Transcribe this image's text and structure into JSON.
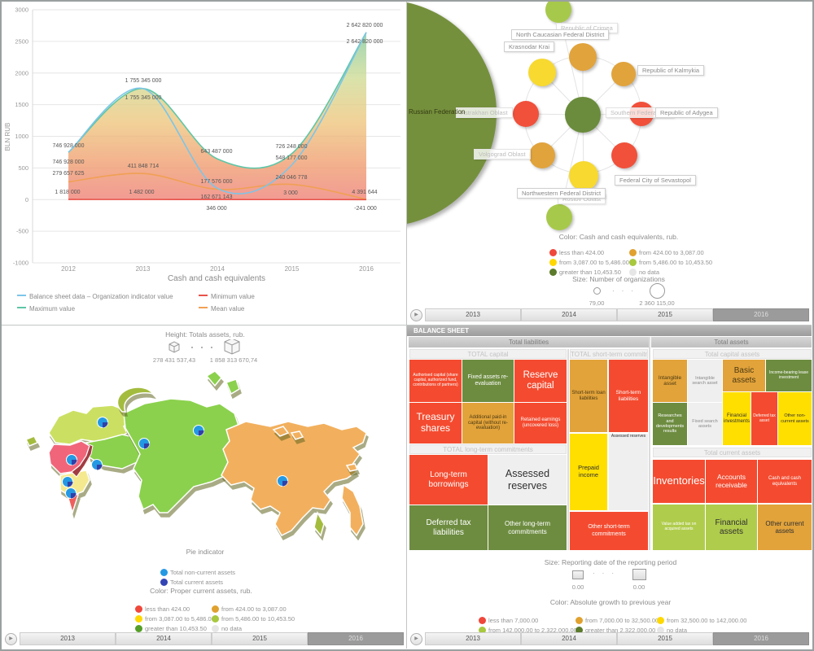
{
  "timeline": {
    "years": [
      "2013",
      "2014",
      "2015",
      "2016"
    ],
    "selected": "2016"
  },
  "chart": {
    "title": "Cash and cash equivalents",
    "ylabel": "BLN RUB",
    "ylim": [
      -1000,
      3000
    ],
    "yticks": [
      3000,
      2500,
      2000,
      1500,
      1000,
      500,
      0,
      -500,
      -1000
    ],
    "years": [
      "2012",
      "2013",
      "2014",
      "2015",
      "2016"
    ]
  },
  "chart_data": {
    "type": "line",
    "x": [
      2012,
      2013,
      2014,
      2015,
      2016
    ],
    "xlabel": "Cash and cash equivalents",
    "ylabel": "BLN RUB",
    "ylim": [
      -1000,
      3000
    ],
    "series": [
      {
        "name": "Balance sheet data – Organization indicator value",
        "color": "#7cc5e8",
        "values_bln": [
          746.928,
          1755.345,
          177.576,
          548.177,
          2642.82
        ],
        "labels": [
          "746 928 000",
          "1 755 345 000",
          "177 576 000",
          "548 177 000",
          "2 642 820 000"
        ]
      },
      {
        "name": "Maximum value",
        "color": "#5fc6a7",
        "values_bln": [
          746.928,
          1755.345,
          643.487,
          726.248,
          2642.82
        ],
        "labels": [
          "746 928 000",
          "1 755 345 000",
          "643 487 000",
          "726 248 000",
          "2 642 820 000"
        ]
      },
      {
        "name": "Mean value",
        "color": "#f0a054",
        "values_bln": [
          279.658,
          411.849,
          162.671,
          240.047,
          4.392
        ],
        "labels": [
          "279 657 625",
          "411 848 714",
          "162 671 143",
          "240 046 778",
          "4 391 644"
        ]
      },
      {
        "name": "Minimum value",
        "color": "#e8534a",
        "values_bln": [
          1.818,
          1.482,
          0.346,
          0.003,
          -0.241
        ],
        "labels": [
          "1 818 000",
          "1 482 000",
          "346 000",
          "3 000",
          "-241 000"
        ]
      }
    ],
    "legend_position": "bottom"
  },
  "network": {
    "root_label": "Russian Federation",
    "center_label": "Southern Federal District",
    "node_colors": {
      "red": "#f1503b",
      "orange": "#e1a33c",
      "yellow": "#f7d930",
      "lightgreen": "#a7c94b",
      "darkgreen": "#6a8c3c"
    },
    "nodes": [
      {
        "label": "Republic of Crimea",
        "color": "lightgreen"
      },
      {
        "label": "North Caucasian Federal District",
        "color": "orange"
      },
      {
        "label": "Krasnodar Krai",
        "color": "yellow"
      },
      {
        "label": "Republic of Kalmykia",
        "color": "orange"
      },
      {
        "label": "Astrakhan Oblast",
        "color": "red"
      },
      {
        "label": "Republic of Adygea",
        "color": "red"
      },
      {
        "label": "Volgograd Oblast",
        "color": "orange"
      },
      {
        "label": "Federal City of Sevastopol",
        "color": "red"
      },
      {
        "label": "Rostov Oblast",
        "color": "yellow"
      },
      {
        "label": "Northwestern Federal District",
        "color": "lightgreen"
      }
    ],
    "color_legend": {
      "title": "Color: Cash and cash equivalents, rub.",
      "colors": [
        "#f0473b",
        "#e0a12f",
        "#ffd800",
        "#a8c83e",
        "#5c7b2b",
        "#e6e6e6"
      ],
      "items": [
        "less than 424.00",
        "from 424.00 to 3,087.00",
        "from 3,087.00 to 5,486.00",
        "from 5,486.00 to 10,453.50",
        "greater than 10,453.50",
        "no data"
      ]
    },
    "size_legend": {
      "title": "Size: Number of organizations",
      "min": "79,00",
      "max": "2 360 115,00"
    }
  },
  "map": {
    "height_legend": {
      "title": "Height: Totals assets, rub.",
      "min": "278 431 537,43",
      "max": "1 858 313 670,74"
    },
    "pie_legend": {
      "title": "Pie indicator",
      "items": [
        {
          "color": "#2499e3",
          "label": "Total non-current assets"
        },
        {
          "color": "#3344b5",
          "label": "Total current assets"
        }
      ]
    },
    "color_legend": {
      "title": "Color: Proper current assets, rub.",
      "colors": [
        "#f0473b",
        "#e0a12f",
        "#ffd800",
        "#a8c83e",
        "#559e28",
        "#e6e6e6"
      ],
      "items": [
        "less than 424.00",
        "from 424.00 to 3,087.00",
        "from 3,087.00 to 5,486.00",
        "from 5,486.00 to 10,453.50",
        "greater than 10,453.50",
        "no data"
      ]
    },
    "region_colors": {
      "nw": "#cbe063",
      "pink": "#f0657a",
      "yellow": "#f5e98f",
      "green": "#8bd14d",
      "orange": "#f2b05e",
      "olive": "#a4bc3e",
      "crimea": "#ef605c"
    },
    "pie_colors": {
      "body": "#2499e3",
      "slice": "#3040a8"
    }
  },
  "treemap": {
    "title": "BALANCE SHEET",
    "groups": [
      "Total liabilities",
      "Total assets"
    ],
    "tile_colors": {
      "red": "#f44b30",
      "amber": "#e2a33b",
      "green": "#6d8c40",
      "yellow": "#ffdf00",
      "white": "#efefef",
      "yellowgreen": "#b0cc4c"
    },
    "sections": {
      "total_capital": {
        "title": "TOTAL capital",
        "tiles": [
          {
            "label": "Authorised capital (share capital, authorized fund, contributions of partners)",
            "color": "red"
          },
          {
            "label": "Fixed assets re-evaluation",
            "color": "green"
          },
          {
            "label": "Reserve capital",
            "color": "red"
          },
          {
            "label": "Treasury shares",
            "color": "red"
          },
          {
            "label": "Additional paid-in capital (without re-evaluation)",
            "color": "amber"
          },
          {
            "label": "Retained earnings (uncovered loss)",
            "color": "red"
          }
        ]
      },
      "short_term": {
        "title": "TOTAL short-term commitm...",
        "tiles": [
          {
            "label": "Short-term loan liabilities",
            "color": "amber"
          },
          {
            "label": "Short-term liabilities",
            "color": "red"
          },
          {
            "label": "Prepaid income",
            "color": "yellow"
          },
          {
            "label": "Assessed reserves",
            "color": "white"
          },
          {
            "label": "Other short-term commitments",
            "color": "red"
          }
        ]
      },
      "long_term": {
        "title": "TOTAL long-term commitments",
        "tiles": [
          {
            "label": "Long-term borrowings",
            "color": "red"
          },
          {
            "label": "Assessed reserves",
            "color": "white"
          },
          {
            "label": "Deferred tax liabilities",
            "color": "green"
          },
          {
            "label": "Other long-term commitments",
            "color": "green"
          }
        ]
      },
      "capital_assets": {
        "title": "Total capital assets",
        "tiles": [
          {
            "label": "Intangible asset",
            "color": "amber"
          },
          {
            "label": "Intangible search asset",
            "color": "white"
          },
          {
            "label": "Basic assets",
            "color": "amber"
          },
          {
            "label": "Income-bearing lease investment",
            "color": "green"
          },
          {
            "label": "Researches and developments results",
            "color": "green"
          },
          {
            "label": "Fixed search assets",
            "color": "white"
          },
          {
            "label": "Financial investments",
            "color": "yellow"
          },
          {
            "label": "Deferred tax asset",
            "color": "red"
          },
          {
            "label": "Other non-current assets",
            "color": "yellow"
          }
        ]
      },
      "current_assets": {
        "title": "Total current assets",
        "tiles": [
          {
            "label": "Inventories",
            "color": "red"
          },
          {
            "label": "Accounts receivable",
            "color": "red"
          },
          {
            "label": "Cash and cash equivalents",
            "color": "red"
          },
          {
            "label": "Value added tax on acquired assets",
            "color": "yellowgreen"
          },
          {
            "label": "Financial assets",
            "color": "yellowgreen"
          },
          {
            "label": "Other current assets",
            "color": "amber"
          }
        ]
      }
    },
    "size_legend": {
      "title": "Size: Reporting date of the reporting period",
      "min": "0.00",
      "max": "0.00"
    },
    "color_legend": {
      "title": "Color: Absolute growth to previous year",
      "colors": [
        "#f0473b",
        "#e0a12f",
        "#ffd800",
        "#a8c83e",
        "#5c7b2b",
        "#e6e6e6"
      ],
      "items": [
        "less than 7,000.00",
        "from 7,000.00 to 32,500.00",
        "from 32,500.00 to 142,000.00",
        "from 142,000.00 to 2,322,000.00",
        "greater than 2,322,000.00",
        "no data"
      ]
    }
  }
}
